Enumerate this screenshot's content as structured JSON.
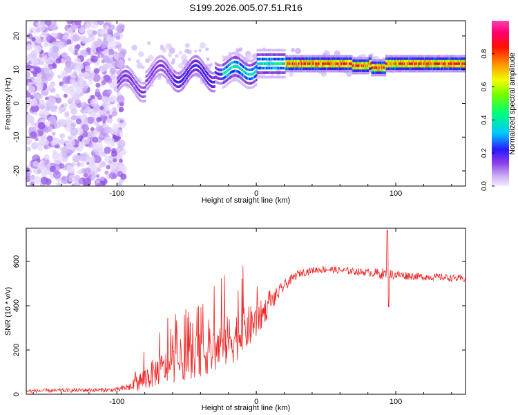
{
  "title": "S199.2026.005.07.51.R16",
  "chart_data": [
    {
      "type": "heatmap",
      "name": "spectrogram",
      "xlabel": "Height of straight line (km)",
      "ylabel": "Frequency (Hz)",
      "xlim": [
        -165,
        150
      ],
      "ylim": [
        -24.5,
        24.5
      ],
      "xticks": [
        -100,
        0,
        100
      ],
      "xtick_labels": [
        "-100",
        "0",
        "100"
      ],
      "yticks": [
        -20,
        -10,
        0,
        10,
        20
      ],
      "ytick_labels": [
        "-20",
        "-10",
        "0",
        "10",
        "20"
      ],
      "ridge_frequency_hz": 11.8,
      "ridge_start_km": -100,
      "noise_end_km": -100,
      "colorbar": {
        "label": "Normalized spectral amplitude",
        "range": [
          0,
          1
        ],
        "ticks": [
          0.0,
          0.2,
          0.4,
          0.6,
          0.8
        ],
        "tick_labels": [
          "0.0",
          "0.2",
          "0.4",
          "0.6",
          "0.8"
        ],
        "colormap": [
          "#f2eaff",
          "#cbb0f5",
          "#9a5ce8",
          "#6a1ed8",
          "#2020ff",
          "#00c8ff",
          "#00ff80",
          "#80ff00",
          "#ffff00",
          "#ff8000",
          "#ff0000",
          "#ff0070",
          "#ff40b0"
        ]
      }
    },
    {
      "type": "line",
      "name": "snr",
      "xlabel": "Height of straight line (km)",
      "ylabel": "SNR (10 * v/v)",
      "xlim": [
        -165,
        150
      ],
      "ylim": [
        0,
        750
      ],
      "xticks": [
        -100,
        0,
        100
      ],
      "xtick_labels": [
        "-100",
        "0",
        "100"
      ],
      "yticks": [
        0,
        200,
        400,
        600
      ],
      "ytick_labels": [
        "0",
        "200",
        "400",
        "600"
      ],
      "color": "#ee2222",
      "envelope_km": [
        -165,
        -100,
        -90,
        -80,
        -70,
        -60,
        -50,
        -40,
        -30,
        -20,
        -10,
        0,
        10,
        20,
        30,
        40,
        50,
        60,
        70,
        80,
        90,
        100,
        110,
        120,
        130,
        140,
        150
      ],
      "envelope_snr": [
        15,
        20,
        35,
        70,
        110,
        130,
        150,
        180,
        200,
        240,
        280,
        330,
        410,
        490,
        545,
        560,
        565,
        560,
        555,
        550,
        545,
        540,
        535,
        530,
        530,
        525,
        520
      ],
      "noise_amp": [
        8,
        10,
        20,
        55,
        70,
        80,
        85,
        100,
        110,
        120,
        110,
        80,
        45,
        25,
        18,
        16,
        16,
        16,
        16,
        16,
        25,
        22,
        18,
        16,
        16,
        16,
        16
      ],
      "peak_km": 94,
      "peak_snr": 740,
      "dip_km": 94,
      "dip_snr": 395
    }
  ]
}
